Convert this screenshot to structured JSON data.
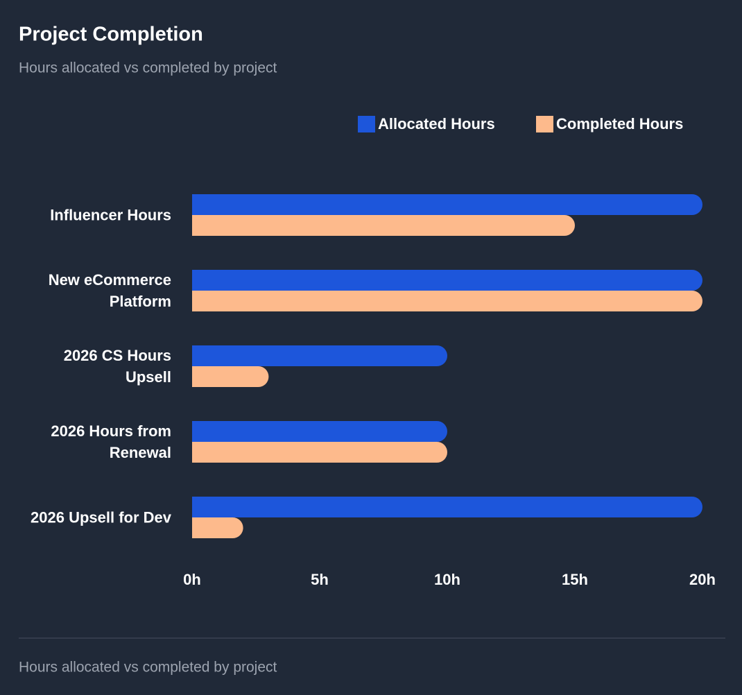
{
  "chart_data": {
    "type": "hbar",
    "title": "Project Completion",
    "subtitle": "Hours allocated vs completed by project",
    "footer": "Hours allocated vs completed by project",
    "categories": [
      "Influencer Hours",
      "New eCommerce Platform",
      "2026 CS Hours Upsell",
      "2026 Hours from Renewal",
      "2026 Upsell for Dev"
    ],
    "series": [
      {
        "name": "Allocated Hours",
        "color": "#1d56db",
        "values": [
          20,
          20,
          10,
          10,
          20
        ]
      },
      {
        "name": "Completed Hours",
        "color": "#fdba8c",
        "values": [
          15,
          20,
          3,
          10,
          2
        ]
      }
    ],
    "xlim": [
      0,
      20
    ],
    "xticks": [
      {
        "value": 0,
        "label": "0h"
      },
      {
        "value": 5,
        "label": "5h"
      },
      {
        "value": 10,
        "label": "10h"
      },
      {
        "value": 15,
        "label": "15h"
      },
      {
        "value": 20,
        "label": "20h"
      }
    ],
    "legend": "top-right",
    "grid": false
  }
}
